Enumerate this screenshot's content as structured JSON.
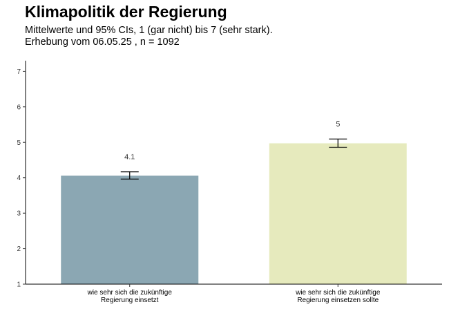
{
  "header": {
    "title": "Klimapolitik der Regierung",
    "subtitle_line1": "Mittelwerte und 95% CIs, 1 (gar nicht) bis 7 (sehr stark).",
    "subtitle_line2": "Erhebung vom 06.05.25 , n = 1092"
  },
  "chart_data": {
    "type": "bar",
    "title": "Klimapolitik der Regierung",
    "subtitle": "Mittelwerte und 95% CIs, 1 (gar nicht) bis 7 (sehr stark). Erhebung vom 06.05.25 , n = 1092",
    "xlabel": "",
    "ylabel": "",
    "ylim": [
      1,
      7.3
    ],
    "yticks": [
      1,
      2,
      3,
      4,
      5,
      6,
      7
    ],
    "grid": false,
    "categories": [
      [
        "wie sehr sich die zukünftige",
        "Regierung einsetzt"
      ],
      [
        "wie sehr sich die zukünftige",
        "Regierung einsetzen sollte"
      ]
    ],
    "values": [
      4.06,
      4.97
    ],
    "ci_low": [
      3.96,
      4.86
    ],
    "ci_high": [
      4.17,
      5.09
    ],
    "data_labels": [
      "4.1",
      "5"
    ],
    "colors": [
      "#8ba7b3",
      "#e6eabd"
    ]
  }
}
